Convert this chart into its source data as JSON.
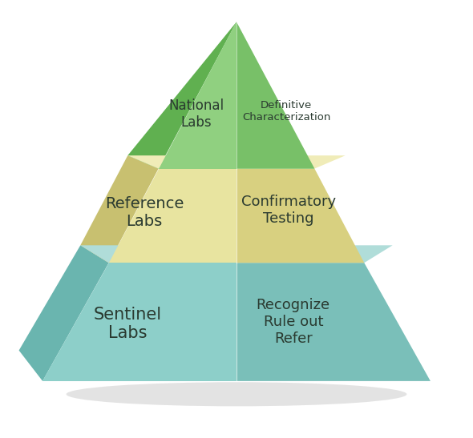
{
  "background_color": "#f5f5f5",
  "fig_bg": "#ffffff",
  "sentinel": {
    "name": "Sentinel\nLabs",
    "description": "Recognize\nRule out\nRefer",
    "left_color": "#8dcfc9",
    "right_color": "#7abfb9",
    "top_color": "#b0ddd9",
    "side_left_color": "#6ab5af",
    "side_right_color": "#5aa09a",
    "label_fontsize": 15,
    "desc_fontsize": 13
  },
  "reference": {
    "name": "Reference\nLabs",
    "description": "Confirmatory\nTesting",
    "left_color": "#e8e4a0",
    "right_color": "#d8d080",
    "top_color": "#f0ecb8",
    "side_left_color": "#c8c070",
    "side_right_color": "#b8b060",
    "label_fontsize": 14,
    "desc_fontsize": 13
  },
  "national": {
    "name": "National\nLabs",
    "description": "Definitive\nCharacterization",
    "left_color": "#90d080",
    "right_color": "#78c068",
    "top_color": "#b0e0a0",
    "side_left_color": "#60b050",
    "side_right_color": "#50a040",
    "label_fontsize": 12,
    "desc_fontsize": 9.5
  },
  "text_color": "#2a3a30",
  "shadow_color": "#b0b0b0"
}
